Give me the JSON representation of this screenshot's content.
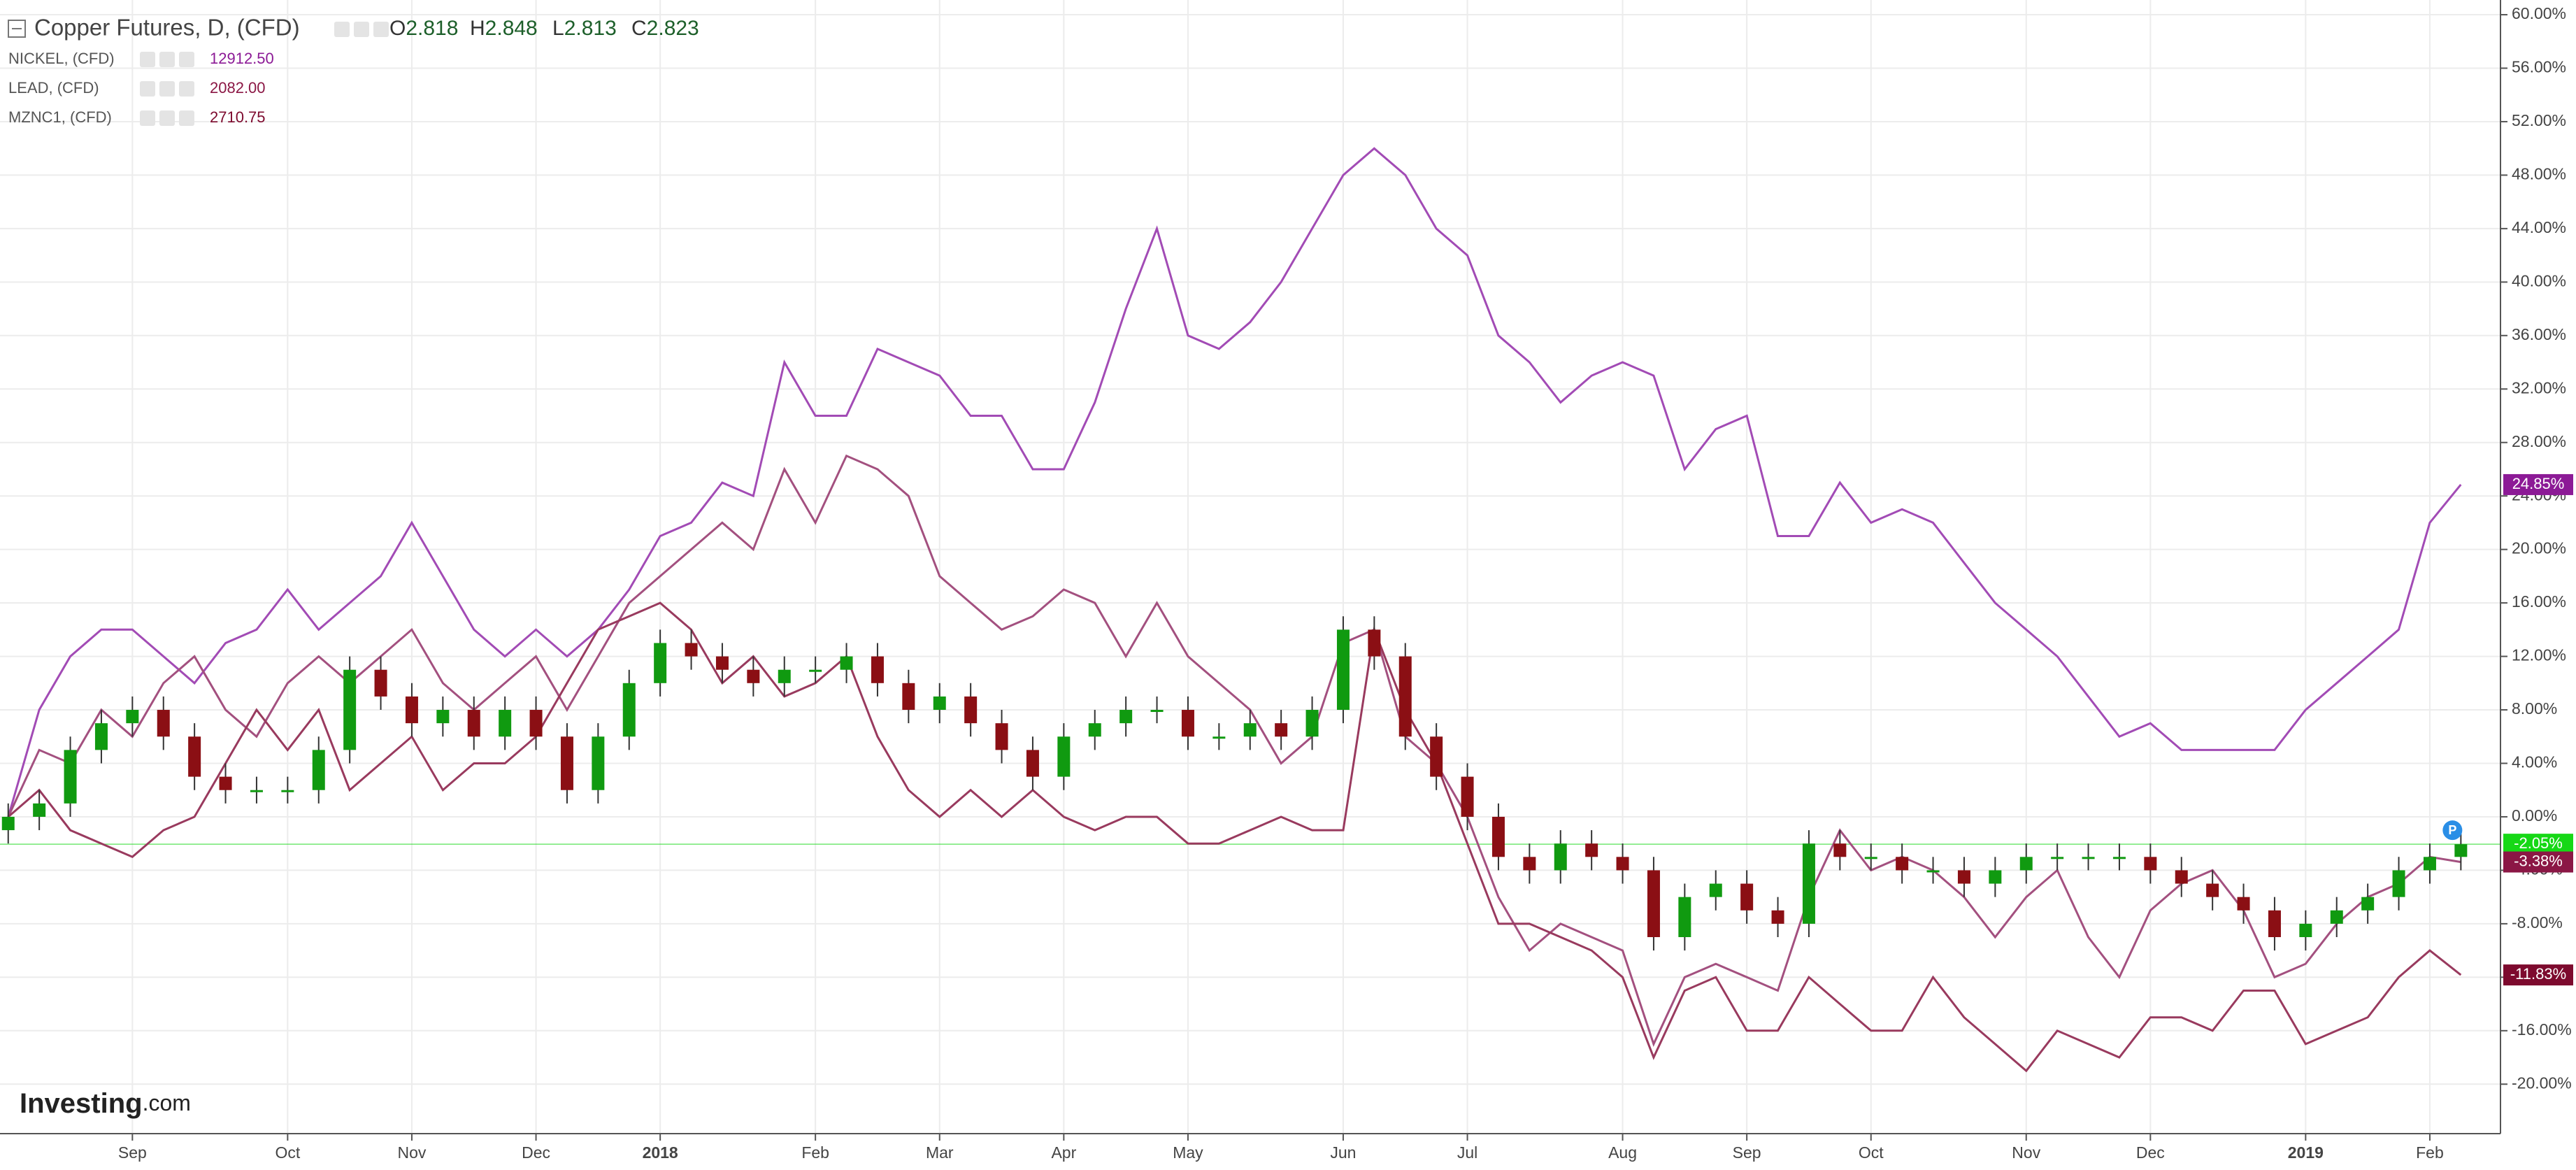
{
  "chart_data": {
    "type": "candlestick",
    "title": "Copper Futures, D, (CFD)",
    "ohlc_legend": [
      {
        "key": "O",
        "value": 2.818
      },
      {
        "key": "H",
        "value": 2.848
      },
      {
        "key": "L",
        "value": 2.813
      },
      {
        "key": "C",
        "value": 2.823
      }
    ],
    "categories": [
      null,
      null,
      null,
      null,
      "Sep",
      null,
      null,
      null,
      null,
      "Oct",
      null,
      null,
      null,
      "Nov",
      null,
      null,
      null,
      "Dec",
      null,
      null,
      null,
      "2018",
      null,
      null,
      null,
      null,
      "Feb",
      null,
      null,
      null,
      "Mar",
      null,
      null,
      null,
      "Apr",
      null,
      null,
      null,
      "May",
      null,
      null,
      null,
      null,
      "Jun",
      null,
      null,
      null,
      "Jul",
      null,
      null,
      null,
      null,
      "Aug",
      null,
      null,
      null,
      "Sep",
      null,
      null,
      null,
      "Oct",
      null,
      null,
      null,
      null,
      "Nov",
      null,
      null,
      null,
      "Dec",
      null,
      null,
      null,
      null,
      "2019",
      null,
      null,
      null,
      "Feb",
      null
    ],
    "open": [
      -1,
      0,
      1,
      5,
      7,
      8,
      6,
      3,
      2,
      2,
      2,
      5,
      11,
      9,
      7,
      8,
      6,
      8,
      6,
      2,
      6,
      10,
      13,
      12,
      11,
      10,
      11,
      11,
      12,
      10,
      8,
      9,
      7,
      5,
      3,
      6,
      7,
      8,
      8,
      6,
      6,
      7,
      6,
      8,
      14,
      12,
      6,
      3,
      0,
      -3,
      -4,
      -2,
      -3,
      -4,
      -9,
      -6,
      -5,
      -7,
      -8,
      -2,
      -3,
      -3,
      -4,
      -4,
      -5,
      -4,
      -3,
      -3,
      -3,
      -3,
      -4,
      -5,
      -6,
      -7,
      -9,
      -8,
      -7,
      -6,
      -4,
      -3
    ],
    "high": [
      1,
      2,
      6,
      8,
      9,
      9,
      7,
      4,
      3,
      3,
      6,
      12,
      12,
      10,
      9,
      9,
      9,
      9,
      7,
      7,
      11,
      14,
      14,
      13,
      12,
      12,
      12,
      13,
      13,
      11,
      10,
      10,
      8,
      6,
      7,
      8,
      9,
      9,
      9,
      7,
      8,
      8,
      9,
      15,
      15,
      13,
      7,
      4,
      1,
      -2,
      -1,
      -1,
      -2,
      -3,
      -5,
      -4,
      -4,
      -6,
      -1,
      -1,
      -2,
      -2,
      -3,
      -3,
      -3,
      -2,
      -2,
      -2,
      -2,
      -2,
      -3,
      -4,
      -5,
      -6,
      -7,
      -6,
      -5,
      -3,
      -2,
      -1
    ],
    "low": [
      -2,
      -1,
      0,
      4,
      6,
      5,
      2,
      1,
      1,
      1,
      1,
      4,
      8,
      6,
      6,
      5,
      5,
      5,
      1,
      1,
      5,
      9,
      11,
      10,
      9,
      9,
      10,
      10,
      9,
      7,
      7,
      6,
      4,
      2,
      2,
      5,
      6,
      7,
      5,
      5,
      5,
      5,
      5,
      7,
      11,
      5,
      2,
      -1,
      -4,
      -5,
      -5,
      -4,
      -5,
      -10,
      -10,
      -7,
      -8,
      -9,
      -9,
      -4,
      -4,
      -5,
      -5,
      -6,
      -6,
      -5,
      -4,
      -4,
      -4,
      -5,
      -6,
      -7,
      -8,
      -10,
      -10,
      -9,
      -8,
      -7,
      -5,
      -4
    ],
    "close": [
      0,
      1,
      5,
      7,
      8,
      6,
      3,
      2,
      2,
      2,
      5,
      11,
      9,
      7,
      8,
      6,
      8,
      6,
      2,
      6,
      10,
      13,
      12,
      11,
      10,
      11,
      11,
      12,
      10,
      8,
      9,
      7,
      5,
      3,
      6,
      7,
      8,
      8,
      6,
      6,
      7,
      6,
      8,
      14,
      12,
      6,
      3,
      0,
      -3,
      -4,
      -2,
      -3,
      -4,
      -9,
      -6,
      -5,
      -7,
      -8,
      -2,
      -3,
      -3,
      -4,
      -4,
      -5,
      -4,
      -3,
      -3,
      -3,
      -3,
      -4,
      -5,
      -6,
      -7,
      -9,
      -8,
      -7,
      -6,
      -4,
      -3,
      -2.05
    ],
    "color_up": "#109a10",
    "color_down": "#8b0f14",
    "tag": {
      "value": -2.05,
      "label": "-2.05%",
      "color": "#16d816"
    },
    "series": [
      {
        "name": "NICKEL, (CFD)",
        "type": "line",
        "color": "#a24bb5",
        "last_price": {
          "value": 12912.5,
          "label": "12912.50"
        },
        "tag": {
          "value": 24.85,
          "label": "24.85%",
          "color": "#8c1a96"
        },
        "values": [
          0,
          8,
          12,
          14,
          14,
          12,
          10,
          13,
          14,
          17,
          14,
          16,
          18,
          22,
          18,
          14,
          12,
          14,
          12,
          14,
          17,
          21,
          22,
          25,
          24,
          34,
          30,
          30,
          35,
          34,
          33,
          30,
          30,
          26,
          26,
          31,
          38,
          44,
          36,
          35,
          37,
          40,
          44,
          48,
          50,
          48,
          44,
          42,
          36,
          34,
          31,
          33,
          34,
          33,
          26,
          29,
          30,
          21,
          21,
          25,
          22,
          23,
          22,
          19,
          16,
          14,
          12,
          9,
          6,
          7,
          5,
          5,
          5,
          5,
          8,
          10,
          12,
          14,
          22,
          24.85
        ]
      },
      {
        "name": "LEAD, (CFD)",
        "type": "line",
        "color": "#a3507f",
        "last_price": {
          "value": 2082,
          "label": "2082.00"
        },
        "tag": {
          "value": -3.38,
          "label": "-3.38%",
          "color": "#8b1745"
        },
        "values": [
          0,
          5,
          4,
          8,
          6,
          10,
          12,
          8,
          6,
          10,
          12,
          10,
          12,
          14,
          10,
          8,
          10,
          12,
          8,
          12,
          16,
          18,
          20,
          22,
          20,
          26,
          22,
          27,
          26,
          24,
          18,
          16,
          14,
          15,
          17,
          16,
          12,
          16,
          12,
          10,
          8,
          4,
          6,
          13,
          14,
          6,
          4,
          0,
          -6,
          -10,
          -8,
          -9,
          -10,
          -17,
          -12,
          -11,
          -12,
          -13,
          -6,
          -1,
          -4,
          -3,
          -4,
          -6,
          -9,
          -6,
          -4,
          -9,
          -12,
          -7,
          -5,
          -4,
          -7,
          -12,
          -11,
          -8,
          -6,
          -5,
          -3,
          -3.38
        ]
      },
      {
        "name": "MZNC1, (CFD)",
        "type": "line",
        "color": "#993a5e",
        "last_price": {
          "value": 2710.75,
          "label": "2710.75"
        },
        "tag": {
          "value": -11.83,
          "label": "-11.83%",
          "color": "#7d0a2e"
        },
        "values": [
          0,
          2,
          -1,
          -2,
          -3,
          -1,
          0,
          4,
          8,
          5,
          8,
          2,
          4,
          6,
          2,
          4,
          4,
          6,
          10,
          14,
          15,
          16,
          14,
          10,
          12,
          9,
          10,
          12,
          6,
          2,
          0,
          2,
          0,
          2,
          0,
          -1,
          0,
          0,
          -2,
          -2,
          -1,
          0,
          -1,
          -1,
          14,
          8,
          4,
          -2,
          -8,
          -8,
          -9,
          -10,
          -12,
          -18,
          -13,
          -12,
          -16,
          -16,
          -12,
          -14,
          -16,
          -16,
          -12,
          -15,
          -17,
          -19,
          -16,
          -17,
          -18,
          -15,
          -15,
          -16,
          -13,
          -13,
          -17,
          -16,
          -15,
          -12,
          -10,
          -11.83
        ]
      }
    ],
    "ylim": [
      -23.7,
      61.1
    ],
    "yticks": [
      {
        "value": -20,
        "label": "-20.00%"
      },
      {
        "value": -16,
        "label": "-16.00%"
      },
      {
        "value": -12,
        "label": "-12.00%"
      },
      {
        "value": -8,
        "label": "-8.00%"
      },
      {
        "value": -4,
        "label": "-4.00%"
      },
      {
        "value": 0,
        "label": "0.00%"
      },
      {
        "value": 4,
        "label": "4.00%"
      },
      {
        "value": 8,
        "label": "8.00%"
      },
      {
        "value": 12,
        "label": "12.00%"
      },
      {
        "value": 16,
        "label": "16.00%"
      },
      {
        "value": 20,
        "label": "20.00%"
      },
      {
        "value": 24,
        "label": "24.00%"
      },
      {
        "value": 28,
        "label": "28.00%"
      },
      {
        "value": 32,
        "label": "32.00%"
      },
      {
        "value": 36,
        "label": "36.00%"
      },
      {
        "value": 40,
        "label": "40.00%"
      },
      {
        "value": 44,
        "label": "44.00%"
      },
      {
        "value": 48,
        "label": "48.00%"
      },
      {
        "value": 52,
        "label": "52.00%"
      },
      {
        "value": 56,
        "label": "56.00%"
      },
      {
        "value": 60,
        "label": "60.00%"
      }
    ],
    "grid": true,
    "brand": "Investing",
    "brand_suffix": ".com",
    "marker_text": "P"
  }
}
